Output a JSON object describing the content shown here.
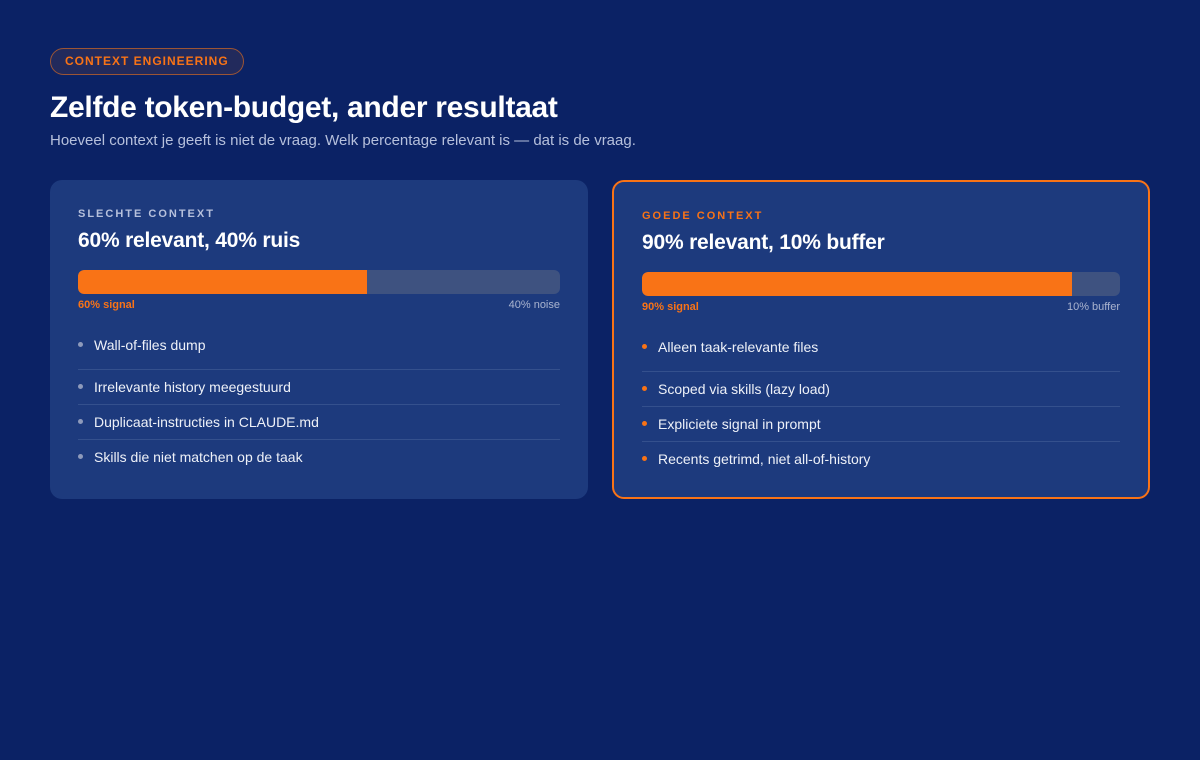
{
  "header": {
    "badge": "CONTEXT ENGINEERING",
    "title": "Zelfde token-budget, ander resultaat",
    "subtitle": "Hoeveel context je geeft is niet de vraag. Welk percentage relevant is — dat is de vraag."
  },
  "cards": [
    {
      "label": "SLECHTE CONTEXT",
      "heading": "60% relevant, 40% ruis",
      "signal_fraction": 0.6,
      "bar_left_label": "60% signal",
      "bar_right_label": "40% noise",
      "items": [
        "Wall-of-files dump",
        "Irrelevante history meegestuurd",
        "Duplicaat-instructies in CLAUDE.md",
        "Skills die niet matchen op de taak"
      ]
    },
    {
      "label": "GOEDE CONTEXT",
      "heading": "90% relevant, 10% buffer",
      "signal_fraction": 0.9,
      "bar_left_label": "90% signal",
      "bar_right_label": "10% buffer",
      "items": [
        "Alleen taak-relevante files",
        "Scoped via skills (lazy load)",
        "Expliciete signal in prompt",
        "Recents getrimd, niet all-of-history"
      ]
    }
  ],
  "colors": {
    "background": "#0b2265",
    "card": "#1d3a7d",
    "accent": "#f97316",
    "bar_track": "#3e5280"
  },
  "icons": {
    "bullet": "dot-icon"
  }
}
